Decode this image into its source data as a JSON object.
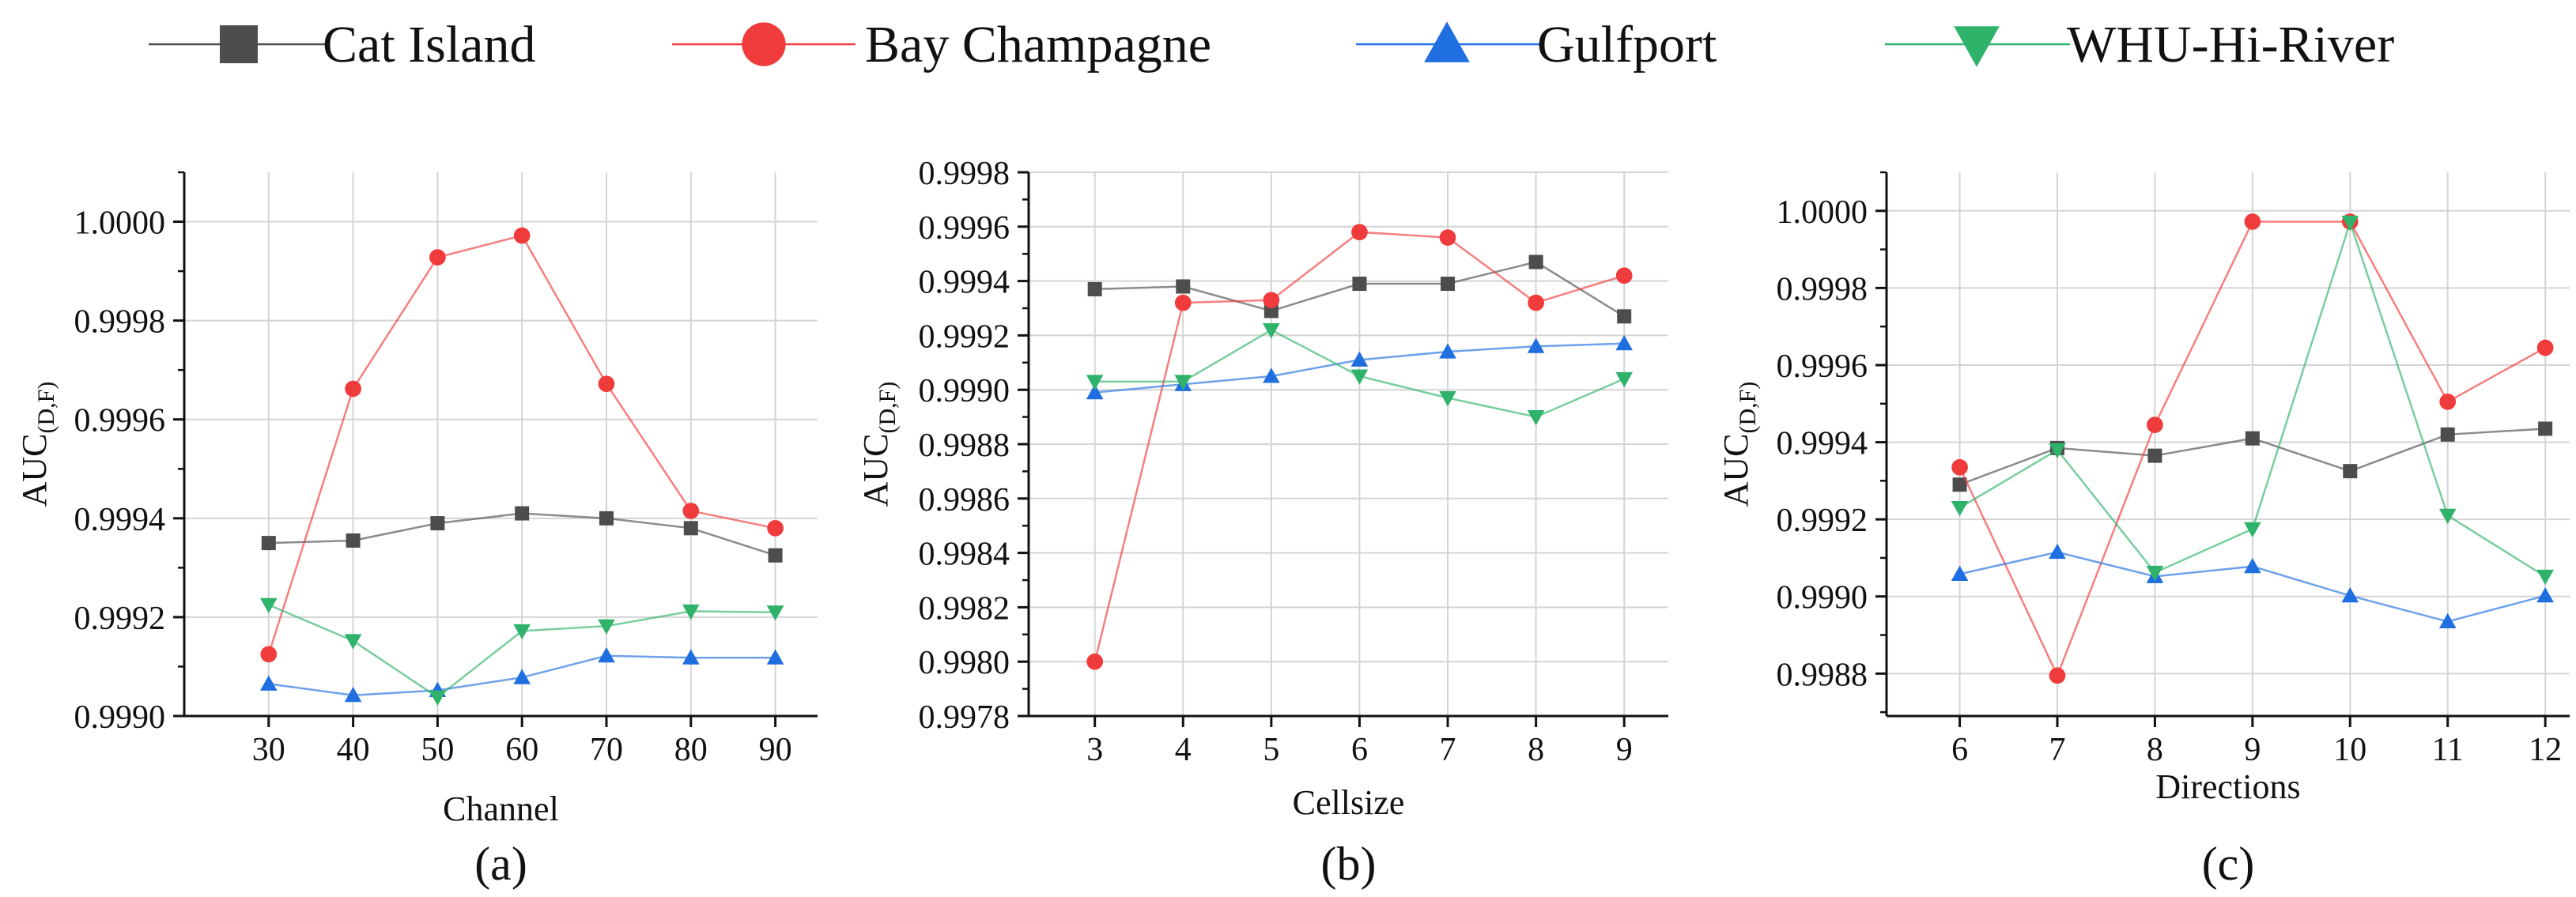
{
  "legend": [
    {
      "name": "Cat Island",
      "color": "#4d4d4d",
      "marker": "square"
    },
    {
      "name": "Bay Champagne",
      "color": "#ef3b3b",
      "marker": "circle"
    },
    {
      "name": "Gulfport",
      "color": "#1f6fe0",
      "marker": "triangle-up"
    },
    {
      "name": "WHU-Hi-River",
      "color": "#2fb36a",
      "marker": "triangle-down"
    }
  ],
  "chart_data": [
    {
      "type": "line",
      "panel_label": "(a)",
      "xlabel": "Channel",
      "ylabel": "AUC",
      "ylabel_subscript": "(D,F)",
      "x": [
        30,
        40,
        50,
        60,
        70,
        80,
        90
      ],
      "xlim": [
        20,
        95
      ],
      "ylim": [
        0.999,
        1.0001
      ],
      "y_ticks": [
        "0.9990",
        "0.9992",
        "0.9994",
        "0.9996",
        "0.9998",
        "1.0000"
      ],
      "y_tick_values": [
        0.999,
        0.9992,
        0.9994,
        0.9996,
        0.9998,
        1.0
      ],
      "grid": true,
      "series": [
        {
          "name": "Cat Island",
          "values": [
            0.99935,
            0.999355,
            0.99939,
            0.99941,
            0.9994,
            0.99938,
            0.999325
          ]
        },
        {
          "name": "Bay Champagne",
          "values": [
            0.999125,
            0.999662,
            0.999928,
            0.999972,
            0.999672,
            0.999415,
            0.99938
          ]
        },
        {
          "name": "Gulfport",
          "values": [
            0.999065,
            0.999042,
            0.999052,
            0.999078,
            0.999122,
            0.999118,
            0.999118
          ]
        },
        {
          "name": "WHU-Hi-River",
          "values": [
            0.999225,
            0.999152,
            0.999038,
            0.999172,
            0.999182,
            0.999212,
            0.99921
          ]
        }
      ]
    },
    {
      "type": "line",
      "panel_label": "(b)",
      "xlabel": "Cellsize",
      "ylabel": "AUC",
      "ylabel_subscript": "(D,F)",
      "x": [
        3,
        4,
        5,
        6,
        7,
        8,
        9
      ],
      "xlim": [
        2.25,
        9.5
      ],
      "ylim": [
        0.9978,
        0.9998
      ],
      "y_ticks": [
        "0.9978",
        "0.9980",
        "0.9982",
        "0.9984",
        "0.9986",
        "0.9988",
        "0.9990",
        "0.9992",
        "0.9994",
        "0.9996",
        "0.9998"
      ],
      "y_tick_values": [
        0.9978,
        0.998,
        0.9982,
        0.9984,
        0.9986,
        0.9988,
        0.999,
        0.9992,
        0.9994,
        0.9996,
        0.9998
      ],
      "grid": true,
      "series": [
        {
          "name": "Cat Island",
          "values": [
            0.99937,
            0.99938,
            0.99929,
            0.99939,
            0.99939,
            0.99947,
            0.99927
          ]
        },
        {
          "name": "Bay Champagne",
          "values": [
            0.998,
            0.99932,
            0.99933,
            0.99958,
            0.99956,
            0.99932,
            0.99942
          ]
        },
        {
          "name": "Gulfport",
          "values": [
            0.99899,
            0.99902,
            0.99905,
            0.99911,
            0.99914,
            0.99916,
            0.99917
          ]
        },
        {
          "name": "WHU-Hi-River",
          "values": [
            0.99903,
            0.99903,
            0.99922,
            0.99905,
            0.99897,
            0.9989,
            0.99904
          ]
        }
      ]
    },
    {
      "type": "line",
      "panel_label": "(c)",
      "xlabel": "Directions",
      "ylabel": "AUC",
      "ylabel_subscript": "(D,F)",
      "x": [
        6,
        7,
        8,
        9,
        10,
        11,
        12
      ],
      "xlim": [
        5.25,
        12.25
      ],
      "ylim": [
        0.99869,
        1.0001
      ],
      "y_ticks": [
        "0.9988",
        "0.9990",
        "0.9992",
        "0.9994",
        "0.9996",
        "0.9998",
        "1.0000"
      ],
      "y_tick_values": [
        0.9988,
        0.999,
        0.9992,
        0.9994,
        0.9996,
        0.9998,
        1.0
      ],
      "grid": true,
      "series": [
        {
          "name": "Cat Island",
          "values": [
            0.99929,
            0.999385,
            0.999365,
            0.99941,
            0.999325,
            0.99942,
            0.999435
          ]
        },
        {
          "name": "Bay Champagne",
          "values": [
            0.999335,
            0.998795,
            0.999445,
            0.999972,
            0.999972,
            0.999505,
            0.999645
          ]
        },
        {
          "name": "Gulfport",
          "values": [
            0.999058,
            0.999115,
            0.999052,
            0.999078,
            0.999002,
            0.998935,
            0.999002
          ]
        },
        {
          "name": "WHU-Hi-River",
          "values": [
            0.99923,
            0.99938,
            0.999062,
            0.999175,
            0.99997,
            0.99921,
            0.999052
          ]
        }
      ]
    }
  ]
}
